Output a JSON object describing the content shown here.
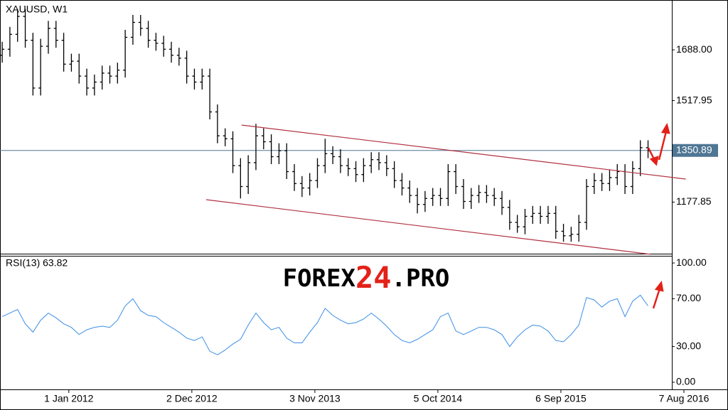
{
  "chart_data": [
    {
      "type": "ohlc",
      "title": "XAUUSD, W1",
      "color": "#000000",
      "x": [
        "2011-07-03",
        "2011-07-24",
        "2011-08-14",
        "2011-09-04",
        "2011-09-25",
        "2011-10-16",
        "2011-11-06",
        "2011-11-27",
        "2011-12-18",
        "2012-01-08",
        "2012-01-29",
        "2012-02-19",
        "2012-03-11",
        "2012-04-01",
        "2012-04-22",
        "2012-05-13",
        "2012-06-03",
        "2012-06-24",
        "2012-07-15",
        "2012-08-05",
        "2012-08-26",
        "2012-09-16",
        "2012-10-07",
        "2012-10-28",
        "2012-11-18",
        "2012-12-09",
        "2012-12-30",
        "2013-01-20",
        "2013-02-10",
        "2013-03-03",
        "2013-03-24",
        "2013-04-14",
        "2013-05-05",
        "2013-05-26",
        "2013-06-16",
        "2013-07-07",
        "2013-07-28",
        "2013-08-18",
        "2013-09-08",
        "2013-09-29",
        "2013-10-20",
        "2013-11-10",
        "2013-12-01",
        "2013-12-22",
        "2014-01-12",
        "2014-02-02",
        "2014-02-23",
        "2014-03-16",
        "2014-04-06",
        "2014-04-27",
        "2014-05-18",
        "2014-06-08",
        "2014-06-29",
        "2014-07-20",
        "2014-08-10",
        "2014-08-31",
        "2014-09-21",
        "2014-10-12",
        "2014-11-02",
        "2014-11-23",
        "2014-12-14",
        "2015-01-04",
        "2015-01-25",
        "2015-02-15",
        "2015-03-08",
        "2015-03-29",
        "2015-04-19",
        "2015-05-10",
        "2015-05-31",
        "2015-06-21",
        "2015-07-12",
        "2015-08-02",
        "2015-08-23",
        "2015-09-13",
        "2015-10-04",
        "2015-10-25",
        "2015-11-15",
        "2015-12-06",
        "2015-12-27",
        "2016-01-17",
        "2016-02-07",
        "2016-02-28",
        "2016-03-20",
        "2016-04-10",
        "2016-05-01"
      ],
      "open": [
        1670,
        1690,
        1740,
        1800,
        1720,
        1560,
        1700,
        1760,
        1720,
        1640,
        1650,
        1600,
        1560,
        1580,
        1610,
        1600,
        1620,
        1730,
        1780,
        1760,
        1720,
        1710,
        1690,
        1670,
        1660,
        1600,
        1580,
        1600,
        1480,
        1400,
        1390,
        1300,
        1230,
        1310,
        1400,
        1380,
        1330,
        1350,
        1280,
        1240,
        1225,
        1250,
        1300,
        1340,
        1330,
        1300,
        1290,
        1270,
        1300,
        1320,
        1310,
        1290,
        1250,
        1225,
        1200,
        1170,
        1190,
        1200,
        1190,
        1280,
        1230,
        1180,
        1200,
        1210,
        1200,
        1190,
        1160,
        1110,
        1095,
        1130,
        1140,
        1130,
        1140,
        1080,
        1065,
        1070,
        1110,
        1230,
        1250,
        1240,
        1260,
        1280,
        1230,
        1290,
        1360
      ],
      "high": [
        1715,
        1765,
        1825,
        1825,
        1745,
        1725,
        1785,
        1785,
        1745,
        1675,
        1675,
        1625,
        1605,
        1635,
        1635,
        1645,
        1755,
        1805,
        1805,
        1785,
        1745,
        1735,
        1715,
        1695,
        1685,
        1625,
        1625,
        1625,
        1505,
        1425,
        1415,
        1325,
        1335,
        1440,
        1425,
        1405,
        1375,
        1375,
        1305,
        1265,
        1275,
        1325,
        1390,
        1365,
        1355,
        1325,
        1315,
        1325,
        1345,
        1345,
        1335,
        1315,
        1275,
        1250,
        1225,
        1215,
        1225,
        1225,
        1305,
        1305,
        1255,
        1225,
        1235,
        1235,
        1225,
        1215,
        1185,
        1135,
        1155,
        1165,
        1165,
        1165,
        1165,
        1105,
        1095,
        1135,
        1255,
        1275,
        1275,
        1285,
        1305,
        1305,
        1315,
        1385,
        1385
      ],
      "low": [
        1645,
        1665,
        1715,
        1695,
        1535,
        1535,
        1675,
        1695,
        1615,
        1615,
        1575,
        1535,
        1535,
        1555,
        1575,
        1575,
        1595,
        1705,
        1735,
        1695,
        1685,
        1665,
        1645,
        1635,
        1575,
        1555,
        1555,
        1455,
        1375,
        1365,
        1275,
        1190,
        1205,
        1285,
        1355,
        1305,
        1305,
        1255,
        1215,
        1195,
        1200,
        1225,
        1275,
        1305,
        1275,
        1265,
        1245,
        1245,
        1275,
        1285,
        1265,
        1225,
        1200,
        1175,
        1140,
        1145,
        1165,
        1165,
        1165,
        1205,
        1155,
        1155,
        1175,
        1175,
        1165,
        1135,
        1085,
        1075,
        1070,
        1105,
        1105,
        1105,
        1055,
        1045,
        1045,
        1045,
        1085,
        1205,
        1215,
        1215,
        1235,
        1205,
        1205,
        1265,
        1325
      ],
      "close": [
        1690,
        1740,
        1800,
        1720,
        1560,
        1700,
        1760,
        1720,
        1640,
        1650,
        1600,
        1560,
        1580,
        1610,
        1600,
        1620,
        1730,
        1780,
        1760,
        1720,
        1710,
        1690,
        1670,
        1660,
        1600,
        1580,
        1600,
        1480,
        1400,
        1390,
        1300,
        1230,
        1310,
        1400,
        1380,
        1330,
        1350,
        1280,
        1240,
        1225,
        1250,
        1300,
        1340,
        1330,
        1300,
        1290,
        1270,
        1300,
        1320,
        1310,
        1290,
        1250,
        1225,
        1200,
        1170,
        1190,
        1200,
        1190,
        1280,
        1230,
        1180,
        1200,
        1210,
        1200,
        1190,
        1160,
        1110,
        1095,
        1130,
        1140,
        1130,
        1140,
        1080,
        1065,
        1070,
        1110,
        1230,
        1250,
        1240,
        1260,
        1280,
        1230,
        1290,
        1360,
        1350
      ],
      "xlim": [
        "2011-06-27",
        "2016-07-05"
      ],
      "xticks": [
        {
          "value": "2012-01-01",
          "label": "1 Jan 2012"
        },
        {
          "value": "2012-12-02",
          "label": "2 Dec 2012"
        },
        {
          "value": "2013-11-03",
          "label": "3 Nov 2013"
        },
        {
          "value": "2014-10-05",
          "label": "5 Oct 2014"
        },
        {
          "value": "2015-09-06",
          "label": "6 Sep 2015"
        },
        {
          "value": "2016-08-07",
          "label": "7 Aug 2016"
        }
      ],
      "ylim": [
        1005,
        1855
      ],
      "yticks": [
        {
          "value": 1177.85,
          "label": "1177.85"
        },
        {
          "value": 1517.95,
          "label": "1517.95"
        },
        {
          "value": 1688.0,
          "label": "1688.00"
        }
      ],
      "current": {
        "value": 1350.89,
        "label": "1350.89",
        "color": "#4f7694"
      },
      "trendlines": [
        {
          "x": [
            "2013-04-17",
            "2016-08-12"
          ],
          "y": [
            1436,
            1255
          ],
          "color": "#b03040"
        },
        {
          "x": [
            "2013-01-10",
            "2016-05-07"
          ],
          "y": [
            1186,
            1003
          ],
          "color": "#b03040"
        }
      ]
    },
    {
      "type": "line",
      "title": "RSI(13) 63.82",
      "color": "#3a8ee6",
      "x": [
        "2011-07-03",
        "2011-07-24",
        "2011-08-14",
        "2011-09-04",
        "2011-09-25",
        "2011-10-16",
        "2011-11-06",
        "2011-11-27",
        "2011-12-18",
        "2012-01-08",
        "2012-01-29",
        "2012-02-19",
        "2012-03-11",
        "2012-04-01",
        "2012-04-22",
        "2012-05-13",
        "2012-06-03",
        "2012-06-24",
        "2012-07-15",
        "2012-08-05",
        "2012-08-26",
        "2012-09-16",
        "2012-10-07",
        "2012-10-28",
        "2012-11-18",
        "2012-12-09",
        "2012-12-30",
        "2013-01-20",
        "2013-02-10",
        "2013-03-03",
        "2013-03-24",
        "2013-04-14",
        "2013-05-05",
        "2013-05-26",
        "2013-06-16",
        "2013-07-07",
        "2013-07-28",
        "2013-08-18",
        "2013-09-08",
        "2013-09-29",
        "2013-10-20",
        "2013-11-10",
        "2013-12-01",
        "2013-12-22",
        "2014-01-12",
        "2014-02-02",
        "2014-02-23",
        "2014-03-16",
        "2014-04-06",
        "2014-04-27",
        "2014-05-18",
        "2014-06-08",
        "2014-06-29",
        "2014-07-20",
        "2014-08-10",
        "2014-08-31",
        "2014-09-21",
        "2014-10-12",
        "2014-11-02",
        "2014-11-23",
        "2014-12-14",
        "2015-01-04",
        "2015-01-25",
        "2015-02-15",
        "2015-03-08",
        "2015-03-29",
        "2015-04-19",
        "2015-05-10",
        "2015-05-31",
        "2015-06-21",
        "2015-07-12",
        "2015-08-02",
        "2015-08-23",
        "2015-09-13",
        "2015-10-04",
        "2015-10-25",
        "2015-11-15",
        "2015-12-06",
        "2015-12-27",
        "2016-01-17",
        "2016-02-07",
        "2016-02-28",
        "2016-03-20",
        "2016-04-10",
        "2016-05-01"
      ],
      "values": [
        55,
        58,
        61,
        49,
        42,
        52,
        58,
        54,
        49,
        46,
        40,
        44,
        46,
        47,
        46,
        52,
        64,
        70,
        60,
        56,
        55,
        50,
        46,
        42,
        37,
        35,
        38,
        26,
        23,
        27,
        32,
        36,
        48,
        58,
        50,
        44,
        46,
        37,
        33,
        33,
        42,
        50,
        62,
        56,
        52,
        49,
        50,
        53,
        58,
        53,
        47,
        40,
        35,
        33,
        36,
        40,
        44,
        55,
        58,
        43,
        40,
        43,
        46,
        46,
        44,
        40,
        30,
        38,
        44,
        48,
        47,
        43,
        35,
        34,
        40,
        48,
        71,
        69,
        63,
        68,
        70,
        55,
        68,
        73,
        64
      ],
      "xlim": [
        "2011-06-27",
        "2016-07-05"
      ],
      "ylim": [
        -6,
        106
      ],
      "yticks": [
        {
          "value": 0,
          "label": "0.00"
        },
        {
          "value": 30,
          "label": "30.00"
        },
        {
          "value": 70,
          "label": "70.00"
        },
        {
          "value": 100,
          "label": "100.00"
        }
      ]
    }
  ],
  "watermark": {
    "parts": [
      "FOREX",
      "24",
      ".PRO"
    ]
  }
}
